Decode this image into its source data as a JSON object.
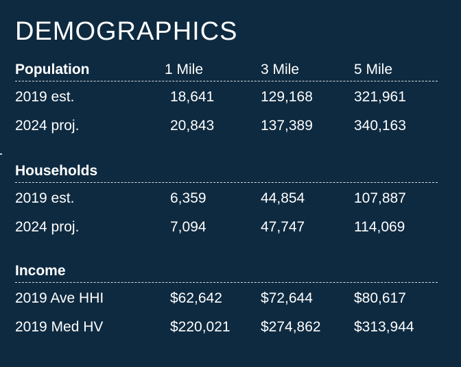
{
  "title": "DEMOGRAPHICS",
  "columns": [
    "1 Mile",
    "3 Mile",
    "5 Mile"
  ],
  "sections": [
    {
      "label": "Population",
      "rows": [
        {
          "label": "2019 est.",
          "values": [
            "18,641",
            "129,168",
            "321,961"
          ]
        },
        {
          "label": "2024 proj.",
          "values": [
            "20,843",
            "137,389",
            "340,163"
          ]
        }
      ]
    },
    {
      "label": "Households",
      "rows": [
        {
          "label": "2019 est.",
          "values": [
            "6,359",
            "44,854",
            "107,887"
          ]
        },
        {
          "label": "2024 proj.",
          "values": [
            "7,094",
            "47,747",
            "114,069"
          ]
        }
      ]
    },
    {
      "label": "Income",
      "rows": [
        {
          "label": "2019 Ave HHI",
          "values": [
            "$62,642",
            "$72,644",
            "$80,617"
          ]
        },
        {
          "label": "2019 Med HV",
          "values": [
            "$220,021",
            "$274,862",
            "$313,944"
          ]
        }
      ]
    }
  ]
}
